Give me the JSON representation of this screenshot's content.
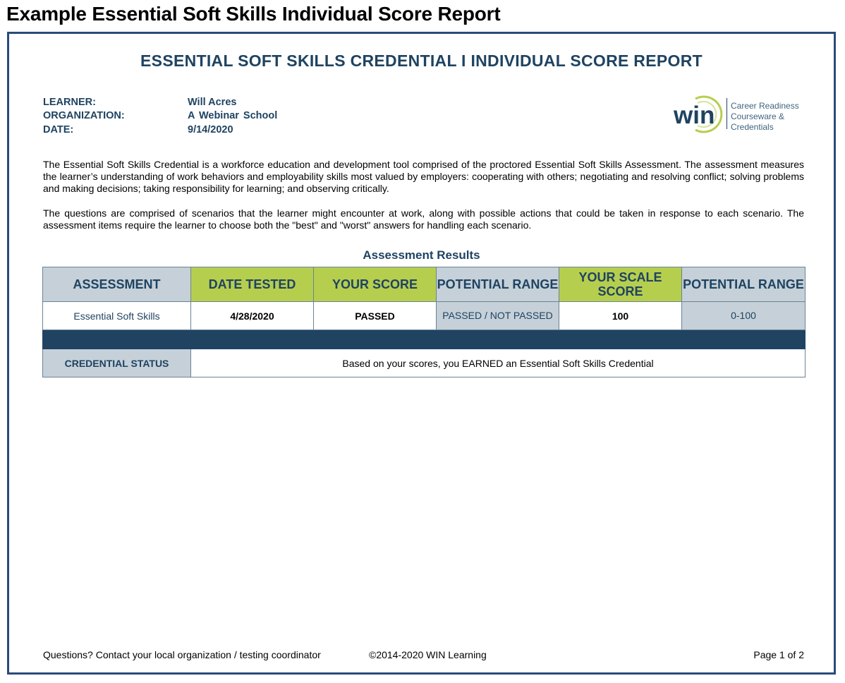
{
  "page": {
    "heading": "Example Essential Soft Skills Individual Score Report"
  },
  "report": {
    "title": "ESSENTIAL SOFT SKILLS CREDENTIAL I INDIVIDUAL SCORE REPORT",
    "learner_label": "LEARNER:",
    "learner_value": "Will Acres",
    "organization_label": "ORGANIZATION:",
    "organization_value": "A Webinar School",
    "date_label": "DATE:",
    "date_value": "9/14/2020",
    "logo": {
      "text": "win",
      "tagline_1": "Career Readiness",
      "tagline_2": "Courseware &",
      "tagline_3": "Credentials",
      "ring_color": "#b6ce4e",
      "text_color": "#1f4361"
    },
    "paragraph_1": "The Essential Soft Skills Credential is a workforce education and development tool comprised of the proctored Essential Soft Skills Assessment. The assessment measures the learner’s understanding of work behaviors and employability skills most valued by employers: cooperating with others; negotiating and resolving conflict; solving problems and making decisions; taking responsibility for learning; and observing critically.",
    "paragraph_2": "The questions are comprised of scenarios that the learner might encounter at work, along with possible actions that could be taken in response to each scenario. The assessment items require the learner to choose both the \"best\" and \"worst\" answers for handling each scenario."
  },
  "results": {
    "section_title": "Assessment Results",
    "headers": {
      "assessment": "ASSESSMENT",
      "date_tested": "DATE TESTED",
      "your_score": "YOUR SCORE",
      "potential_range_1": "POTENTIAL RANGE",
      "your_scale_score": "YOUR SCALE SCORE",
      "potential_range_2": "POTENTIAL RANGE"
    },
    "row": {
      "assessment": "Essential Soft Skills",
      "date_tested": "4/28/2020",
      "your_score": "PASSED",
      "potential_range_1": "PASSED / NOT PASSED",
      "your_scale_score": "100",
      "potential_range_2": "0-100"
    },
    "credential_status_label": "CREDENTIAL STATUS",
    "credential_status_text": "Based on your scores, you EARNED an Essential Soft Skills Credential"
  },
  "footer": {
    "contact": "Questions? Contact your local organization / testing coordinator",
    "copyright": "©2014-2020 WIN Learning",
    "page": "Page 1 of 2"
  },
  "colors": {
    "frame": "#2a4a7a",
    "navy_text": "#1f4361",
    "header_gray": "#c5d0d8",
    "header_green": "#b6ce4e",
    "band": "#1f4361"
  }
}
